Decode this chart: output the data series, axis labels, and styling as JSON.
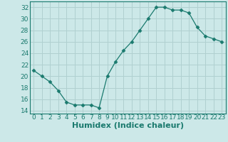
{
  "x": [
    0,
    1,
    2,
    3,
    4,
    5,
    6,
    7,
    8,
    9,
    10,
    11,
    12,
    13,
    14,
    15,
    16,
    17,
    18,
    19,
    20,
    21,
    22,
    23
  ],
  "y": [
    21,
    20,
    19,
    17.5,
    15.5,
    15,
    15,
    15,
    14.5,
    20,
    22.5,
    24.5,
    26,
    28,
    30,
    32,
    32,
    31.5,
    31.5,
    31,
    28.5,
    27,
    26.5,
    26
  ],
  "line_color": "#1a7a6e",
  "marker": "D",
  "marker_size": 2.5,
  "bg_color": "#cce8e8",
  "grid_color": "#b0d0d0",
  "xlabel": "Humidex (Indice chaleur)",
  "xlim": [
    -0.5,
    23.5
  ],
  "ylim": [
    13.5,
    33
  ],
  "yticks": [
    14,
    16,
    18,
    20,
    22,
    24,
    26,
    28,
    30,
    32
  ],
  "xticks": [
    0,
    1,
    2,
    3,
    4,
    5,
    6,
    7,
    8,
    9,
    10,
    11,
    12,
    13,
    14,
    15,
    16,
    17,
    18,
    19,
    20,
    21,
    22,
    23
  ],
  "tick_fontsize": 6.5,
  "xlabel_fontsize": 8,
  "xlabel_fontweight": "bold",
  "spine_color": "#1a7a6e",
  "tick_color": "#1a7a6e"
}
